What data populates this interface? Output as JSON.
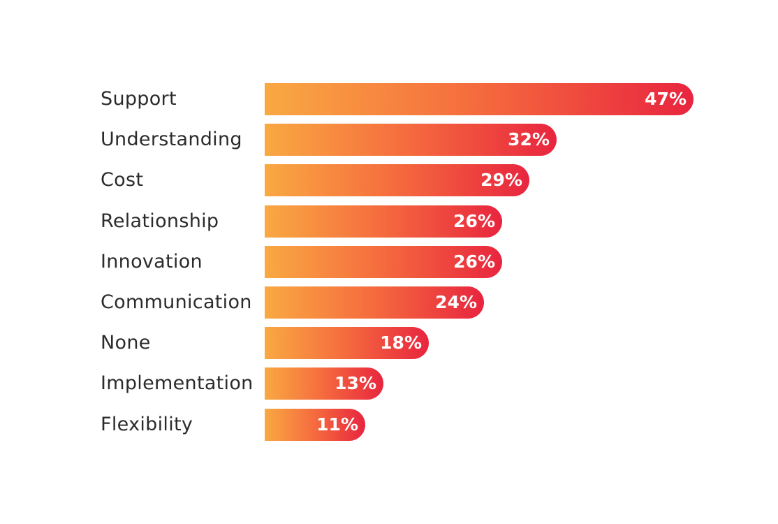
{
  "chart_data": {
    "type": "bar",
    "orientation": "horizontal",
    "categories": [
      "Support",
      "Understanding",
      "Cost",
      "Relationship",
      "Innovation",
      "Communication",
      "None",
      "Implementation",
      "Flexibility"
    ],
    "values": [
      47,
      32,
      29,
      26,
      26,
      24,
      18,
      13,
      11
    ],
    "value_labels": [
      "47%",
      "32%",
      "29%",
      "26%",
      "26%",
      "24%",
      "18%",
      "13%",
      "11%"
    ],
    "unit": "%",
    "title": "",
    "xlabel": "",
    "ylabel": "",
    "grid": false,
    "legend": "none",
    "colors": {
      "gradient_start": "#f9a942",
      "gradient_mid": "#f56a3e",
      "gradient_end": "#e8253f",
      "label_text": "#2b2b2b",
      "value_text": "#ffffff"
    }
  }
}
